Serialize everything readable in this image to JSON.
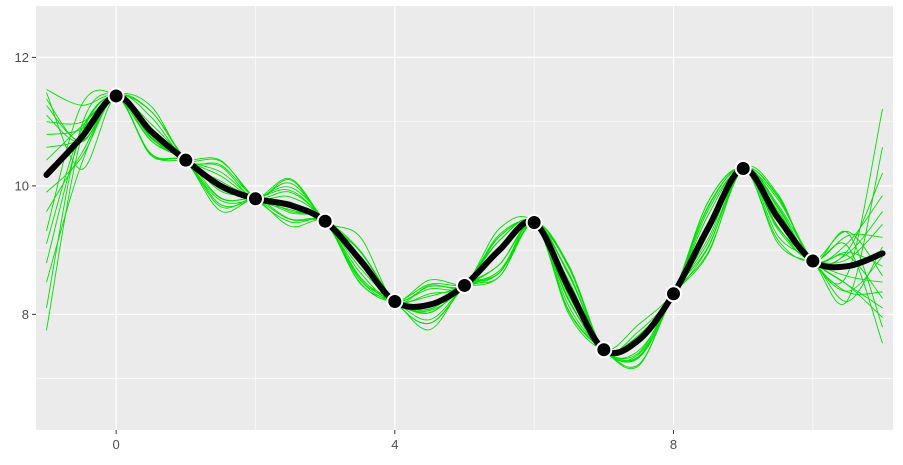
{
  "chart_data": {
    "type": "line",
    "title": "",
    "xlabel": "",
    "ylabel": "",
    "xlim": [
      -1.15,
      11.15
    ],
    "ylim": [
      6.2,
      12.8
    ],
    "x_ticks": [
      0,
      4,
      8
    ],
    "x_tick_labels": [
      "0",
      "4",
      "8"
    ],
    "y_ticks": [
      8,
      10,
      12
    ],
    "y_tick_labels": [
      "8",
      "10",
      "12"
    ],
    "x_minor_ticks": [
      2,
      6,
      10
    ],
    "y_minor_ticks": [
      7,
      9,
      11
    ],
    "grid": true,
    "colors": {
      "panel": "#ebebeb",
      "grid": "#ffffff",
      "samples": "#00e000",
      "mean": "#000000",
      "points": "#000000",
      "point_stroke": "#ffffff"
    },
    "observations": {
      "x": [
        0,
        1,
        2,
        3,
        4,
        5,
        6,
        7,
        8,
        9,
        10
      ],
      "y": [
        11.4,
        10.4,
        9.8,
        9.45,
        8.2,
        8.45,
        9.43,
        7.45,
        8.32,
        10.27,
        8.83
      ]
    },
    "mean_curve": {
      "x": [
        -1,
        -0.5,
        0,
        0.5,
        1,
        1.5,
        2,
        2.5,
        3,
        3.5,
        4,
        4.5,
        5,
        5.5,
        6,
        6.5,
        7,
        7.5,
        8,
        8.5,
        9,
        9.5,
        10,
        10.5,
        11
      ],
      "y": [
        10.17,
        10.75,
        11.4,
        10.85,
        10.4,
        10.0,
        9.8,
        9.7,
        9.45,
        8.85,
        8.2,
        8.15,
        8.45,
        9.0,
        9.43,
        8.4,
        7.45,
        7.6,
        8.32,
        9.35,
        10.27,
        9.5,
        8.83,
        8.75,
        8.95
      ]
    },
    "sample_curves": {
      "count": 18,
      "left_end_y": [
        7.75,
        8.1,
        8.5,
        8.8,
        9.1,
        9.3,
        9.6,
        9.9,
        10.2,
        10.4,
        10.6,
        10.8,
        11.0,
        11.1,
        11.25,
        11.35,
        11.45,
        11.5
      ],
      "right_end_y": [
        7.55,
        7.8,
        7.95,
        8.1,
        8.25,
        8.35,
        8.5,
        8.6,
        8.75,
        8.9,
        9.05,
        9.2,
        9.4,
        9.6,
        9.85,
        10.2,
        10.6,
        11.2
      ]
    }
  }
}
